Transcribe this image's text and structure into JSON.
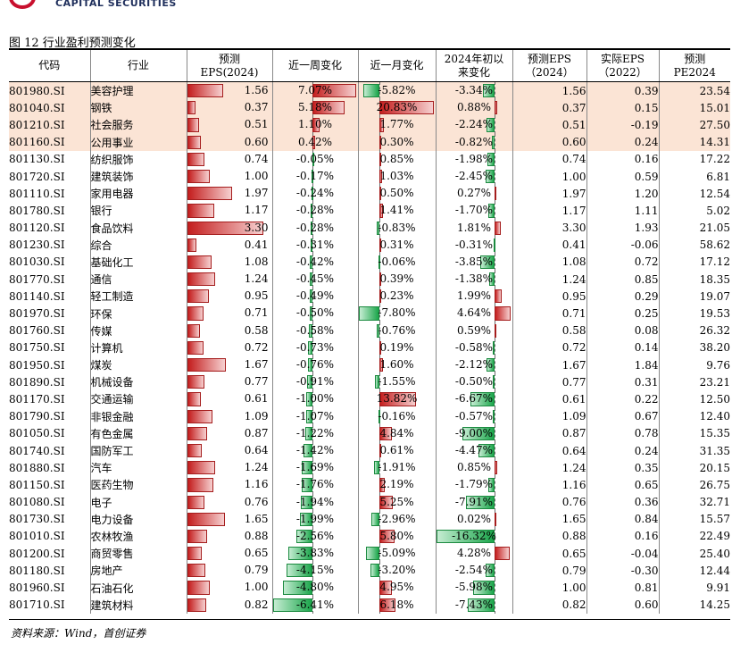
{
  "brand": {
    "name": "CAPITAL SECURITIES"
  },
  "caption": "图 12 行业盈利预测变化",
  "headers": {
    "code": "代码",
    "industry": "行业",
    "eps_forecast_line1": "预测",
    "eps_forecast_line2": "EPS(2024)",
    "week_change": "近一周变化",
    "month_change": "近一月变化",
    "ytd_line1": "2024年初以",
    "ytd_line2": "来变化",
    "eps_pred_line1": "预测EPS",
    "eps_pred_line2": "（2024）",
    "eps_actual_line1": "实际EPS",
    "eps_actual_line2": "（2022）",
    "pe_line1": "预测",
    "pe_line2": "PE2024"
  },
  "colors": {
    "positive_bar": "#c41e1e",
    "negative_bar": "#1ba64b",
    "highlight_row": "#fbe4d5"
  },
  "rows": [
    {
      "code": "801980.SI",
      "industry": "美容护理",
      "eps": "1.56",
      "week": "7.07%",
      "month": "-5.82%",
      "ytd": "-3.34%",
      "eps24": "1.56",
      "eps22": "0.39",
      "pe": "23.54",
      "hl": true
    },
    {
      "code": "801040.SI",
      "industry": "钢铁",
      "eps": "0.37",
      "week": "5.18%",
      "month": "20.83%",
      "ytd": "0.88%",
      "eps24": "0.37",
      "eps22": "0.15",
      "pe": "15.01",
      "hl": true
    },
    {
      "code": "801210.SI",
      "industry": "社会服务",
      "eps": "0.51",
      "week": "1.10%",
      "month": "1.77%",
      "ytd": "-2.24%",
      "eps24": "0.51",
      "eps22": "-0.19",
      "pe": "27.50",
      "hl": true
    },
    {
      "code": "801160.SI",
      "industry": "公用事业",
      "eps": "0.60",
      "week": "0.42%",
      "month": "0.30%",
      "ytd": "-0.82%",
      "eps24": "0.60",
      "eps22": "0.24",
      "pe": "14.31",
      "hl": true
    },
    {
      "code": "801130.SI",
      "industry": "纺织服饰",
      "eps": "0.74",
      "week": "-0.05%",
      "month": "0.85%",
      "ytd": "-1.98%",
      "eps24": "0.74",
      "eps22": "0.16",
      "pe": "17.22"
    },
    {
      "code": "801720.SI",
      "industry": "建筑装饰",
      "eps": "1.00",
      "week": "-0.17%",
      "month": "1.03%",
      "ytd": "-2.45%",
      "eps24": "1.00",
      "eps22": "0.59",
      "pe": "6.81"
    },
    {
      "code": "801110.SI",
      "industry": "家用电器",
      "eps": "1.97",
      "week": "-0.24%",
      "month": "0.50%",
      "ytd": "0.27%",
      "eps24": "1.97",
      "eps22": "1.20",
      "pe": "12.54"
    },
    {
      "code": "801780.SI",
      "industry": "银行",
      "eps": "1.17",
      "week": "-0.28%",
      "month": "1.41%",
      "ytd": "-1.70%",
      "eps24": "1.17",
      "eps22": "1.11",
      "pe": "5.02"
    },
    {
      "code": "801120.SI",
      "industry": "食品饮料",
      "eps": "3.30",
      "week": "-0.28%",
      "month": "-0.83%",
      "ytd": "1.81%",
      "eps24": "3.30",
      "eps22": "1.93",
      "pe": "21.05"
    },
    {
      "code": "801230.SI",
      "industry": "综合",
      "eps": "0.41",
      "week": "-0.31%",
      "month": "0.31%",
      "ytd": "-0.31%",
      "eps24": "0.41",
      "eps22": "-0.06",
      "pe": "58.62"
    },
    {
      "code": "801030.SI",
      "industry": "基础化工",
      "eps": "1.08",
      "week": "-0.42%",
      "month": "-0.06%",
      "ytd": "-3.85%",
      "eps24": "1.08",
      "eps22": "0.72",
      "pe": "17.12"
    },
    {
      "code": "801770.SI",
      "industry": "通信",
      "eps": "1.24",
      "week": "-0.45%",
      "month": "0.39%",
      "ytd": "-1.38%",
      "eps24": "1.24",
      "eps22": "0.85",
      "pe": "18.35"
    },
    {
      "code": "801140.SI",
      "industry": "轻工制造",
      "eps": "0.95",
      "week": "-0.49%",
      "month": "0.23%",
      "ytd": "1.99%",
      "eps24": "0.95",
      "eps22": "0.29",
      "pe": "19.07"
    },
    {
      "code": "801970.SI",
      "industry": "环保",
      "eps": "0.71",
      "week": "-0.50%",
      "month": "-7.80%",
      "ytd": "4.64%",
      "eps24": "0.71",
      "eps22": "0.25",
      "pe": "19.53"
    },
    {
      "code": "801760.SI",
      "industry": "传媒",
      "eps": "0.58",
      "week": "-0.58%",
      "month": "-0.76%",
      "ytd": "0.59%",
      "eps24": "0.58",
      "eps22": "0.08",
      "pe": "26.32"
    },
    {
      "code": "801750.SI",
      "industry": "计算机",
      "eps": "0.72",
      "week": "-0.73%",
      "month": "0.19%",
      "ytd": "-0.58%",
      "eps24": "0.72",
      "eps22": "0.14",
      "pe": "38.20"
    },
    {
      "code": "801950.SI",
      "industry": "煤炭",
      "eps": "1.67",
      "week": "-0.76%",
      "month": "1.60%",
      "ytd": "-2.12%",
      "eps24": "1.67",
      "eps22": "1.84",
      "pe": "9.76"
    },
    {
      "code": "801890.SI",
      "industry": "机械设备",
      "eps": "0.77",
      "week": "-0.91%",
      "month": "-1.55%",
      "ytd": "-0.50%",
      "eps24": "0.77",
      "eps22": "0.31",
      "pe": "23.21"
    },
    {
      "code": "801170.SI",
      "industry": "交通运输",
      "eps": "0.61",
      "week": "-1.00%",
      "month": "13.82%",
      "ytd": "-6.67%",
      "eps24": "0.61",
      "eps22": "0.22",
      "pe": "12.50"
    },
    {
      "code": "801790.SI",
      "industry": "非银金融",
      "eps": "1.09",
      "week": "-1.07%",
      "month": "-0.16%",
      "ytd": "-0.57%",
      "eps24": "1.09",
      "eps22": "0.67",
      "pe": "12.40"
    },
    {
      "code": "801050.SI",
      "industry": "有色金属",
      "eps": "0.87",
      "week": "-1.22%",
      "month": "4.84%",
      "ytd": "-9.00%",
      "eps24": "0.87",
      "eps22": "0.78",
      "pe": "15.35"
    },
    {
      "code": "801740.SI",
      "industry": "国防军工",
      "eps": "0.64",
      "week": "-1.42%",
      "month": "0.61%",
      "ytd": "-4.47%",
      "eps24": "0.64",
      "eps22": "0.24",
      "pe": "31.35"
    },
    {
      "code": "801880.SI",
      "industry": "汽车",
      "eps": "1.24",
      "week": "-1.69%",
      "month": "-1.91%",
      "ytd": "0.85%",
      "eps24": "1.24",
      "eps22": "0.35",
      "pe": "20.15"
    },
    {
      "code": "801150.SI",
      "industry": "医药生物",
      "eps": "1.16",
      "week": "-1.76%",
      "month": "2.19%",
      "ytd": "-1.79%",
      "eps24": "1.16",
      "eps22": "0.65",
      "pe": "26.75"
    },
    {
      "code": "801080.SI",
      "industry": "电子",
      "eps": "0.76",
      "week": "-1.94%",
      "month": "5.25%",
      "ytd": "-7.91%",
      "eps24": "0.76",
      "eps22": "0.36",
      "pe": "32.71"
    },
    {
      "code": "801730.SI",
      "industry": "电力设备",
      "eps": "1.65",
      "week": "-1.99%",
      "month": "-2.96%",
      "ytd": "0.02%",
      "eps24": "1.65",
      "eps22": "0.84",
      "pe": "15.57"
    },
    {
      "code": "801010.SI",
      "industry": "农林牧渔",
      "eps": "0.88",
      "week": "-2.56%",
      "month": "5.80%",
      "ytd": "-16.32%",
      "eps24": "0.88",
      "eps22": "0.16",
      "pe": "22.49"
    },
    {
      "code": "801200.SI",
      "industry": "商贸零售",
      "eps": "0.65",
      "week": "-3.83%",
      "month": "-5.09%",
      "ytd": "4.28%",
      "eps24": "0.65",
      "eps22": "-0.04",
      "pe": "25.40"
    },
    {
      "code": "801180.SI",
      "industry": "房地产",
      "eps": "0.79",
      "week": "-4.15%",
      "month": "-3.20%",
      "ytd": "-2.54%",
      "eps24": "0.79",
      "eps22": "-0.30",
      "pe": "12.44"
    },
    {
      "code": "801960.SI",
      "industry": "石油石化",
      "eps": "1.00",
      "week": "-4.80%",
      "month": "4.95%",
      "ytd": "-5.98%",
      "eps24": "1.00",
      "eps22": "0.81",
      "pe": "9.91"
    },
    {
      "code": "801710.SI",
      "industry": "建筑材料",
      "eps": "0.82",
      "week": "-6.41%",
      "month": "6.18%",
      "ytd": "-7.43%",
      "eps24": "0.82",
      "eps22": "0.60",
      "pe": "14.25"
    }
  ],
  "source": "资料来源：Wind，首创证券"
}
